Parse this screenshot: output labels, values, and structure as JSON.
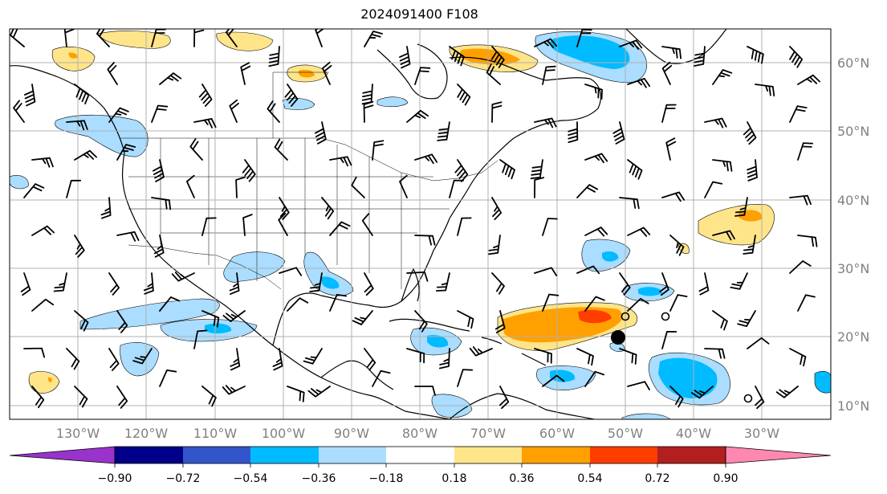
{
  "title": "2024091400 F108",
  "lat_labels": [
    "60°N",
    "50°N",
    "40°N",
    "30°N",
    "20°N",
    "10°N"
  ],
  "lon_labels": [
    "130°W",
    "120°W",
    "110°W",
    "100°W",
    "90°W",
    "80°W",
    "70°W",
    "60°W",
    "50°W",
    "40°W",
    "30°W"
  ],
  "colorbar": {
    "labels": [
      "−0.90",
      "−0.72",
      "−0.54",
      "−0.36",
      "−0.18",
      "0.18",
      "0.36",
      "0.54",
      "0.72",
      "0.90"
    ],
    "colors": [
      "#9933cc",
      "#000088",
      "#3355cc",
      "#00bbff",
      "#aaddff",
      "#ffffff",
      "#ffe58a",
      "#ffa000",
      "#ff3d00",
      "#b21f1f",
      "#ff88b0"
    ]
  },
  "shading_colors": {
    "neg_light": "#aaddff",
    "neg_mid": "#00bbff",
    "pos_light": "#ffe58a",
    "pos_mid": "#ffa000",
    "pos_strong": "#ff3d00"
  }
}
